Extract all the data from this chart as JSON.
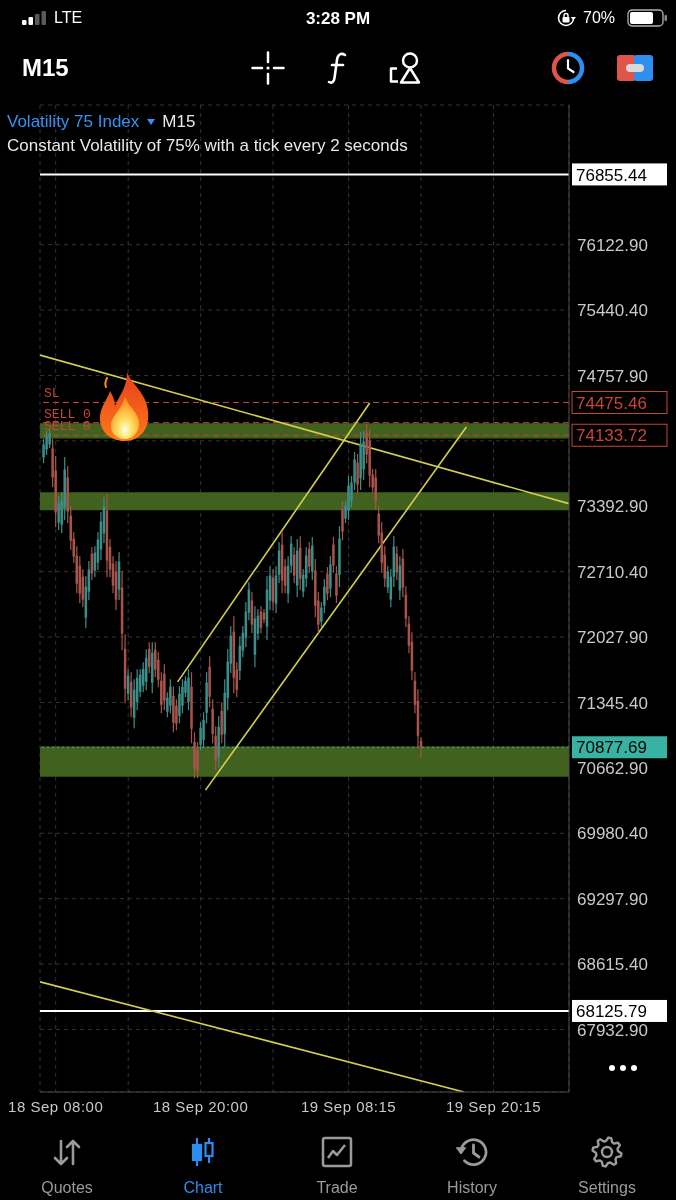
{
  "chart_data": {
    "type": "candlestick",
    "title": "Volatility 75 Index",
    "subtitle": "Constant Volatility of 75% with a tick every 2 seconds",
    "annotations": [
      "LTE",
      "3:28 PM",
      "70%",
      "M15",
      "M15",
      "Quotes",
      "Chart",
      "Trade",
      "History",
      "Settings",
      {
        "text": "SL",
        "y": 74475.46
      },
      {
        "text": "SELL 0",
        "y": 74265
      },
      {
        "text": "SELL 0",
        "y": 74133.72
      }
    ],
    "x": [
      "--09-18T07:00",
      "--09-18T07:15",
      "--09-18T07:30",
      "--09-18T07:45",
      "--09-18T08:00",
      "--09-18T08:15",
      "--09-18T08:30",
      "--09-18T08:45",
      "--09-18T09:00",
      "--09-18T09:15",
      "--09-18T09:30",
      "--09-18T09:45",
      "--09-18T10:00",
      "--09-18T10:15",
      "--09-18T10:30",
      "--09-18T10:45",
      "--09-18T11:00",
      "--09-18T11:15",
      "--09-18T11:30",
      "--09-18T11:45",
      "--09-18T12:00",
      "--09-18T12:15",
      "--09-18T12:30",
      "--09-18T12:45",
      "--09-18T13:00",
      "--09-18T13:15",
      "--09-18T13:30",
      "--09-18T13:45",
      "--09-18T14:00",
      "--09-18T14:15",
      "--09-18T14:30",
      "--09-18T14:45",
      "--09-18T15:00",
      "--09-18T15:15",
      "--09-18T15:30",
      "--09-18T15:45",
      "--09-18T16:00",
      "--09-18T16:15",
      "--09-18T16:30",
      "--09-18T16:45",
      "--09-18T17:00",
      "--09-18T17:15",
      "--09-18T17:30",
      "--09-18T17:45",
      "--09-18T18:00",
      "--09-18T18:15",
      "--09-18T18:30",
      "--09-18T18:45",
      "--09-18T19:00",
      "--09-18T19:15",
      "--09-18T19:30",
      "--09-18T19:45",
      "--09-18T20:00",
      "--09-18T20:15",
      "--09-18T20:30",
      "--09-18T20:45",
      "--09-18T21:00",
      "--09-18T21:15",
      "--09-18T21:30",
      "--09-18T21:45",
      "--09-18T22:00",
      "--09-18T22:15",
      "--09-18T22:30",
      "--09-18T22:45",
      "--09-18T23:00",
      "--09-18T23:15",
      "--09-18T23:30",
      "--09-18T23:45",
      "--09-19T00:00",
      "--09-19T00:15",
      "--09-19T00:30",
      "--09-19T00:45",
      "--09-19T01:00",
      "--09-19T01:15",
      "--09-19T01:30",
      "--09-19T01:45",
      "--09-19T02:00",
      "--09-19T02:15",
      "--09-19T02:30",
      "--09-19T02:45",
      "--09-19T03:00",
      "--09-19T03:15",
      "--09-19T03:30",
      "--09-19T03:45",
      "--09-19T04:00",
      "--09-19T04:15",
      "--09-19T04:30",
      "--09-19T04:45",
      "--09-19T05:00",
      "--09-19T05:15",
      "--09-19T05:30",
      "--09-19T05:45",
      "--09-19T06:00",
      "--09-19T06:15",
      "--09-19T06:30",
      "--09-19T06:45",
      "--09-19T07:00",
      "--09-19T07:15",
      "--09-19T07:30",
      "--09-19T07:45",
      "--09-19T08:00",
      "--09-19T08:15",
      "--09-19T08:30",
      "--09-19T08:45",
      "--09-19T09:00",
      "--09-19T09:15",
      "--09-19T09:30",
      "--09-19T09:45",
      "--09-19T10:00",
      "--09-19T10:15",
      "--09-19T10:30",
      "--09-19T10:45",
      "--09-19T11:00",
      "--09-19T11:15",
      "--09-19T11:30",
      "--09-19T11:45",
      "--09-19T12:00",
      "--09-19T12:15",
      "--09-19T12:30",
      "--09-19T12:45",
      "--09-19T13:00",
      "--09-19T13:15",
      "--09-19T13:30",
      "--09-19T13:45",
      "--09-19T14:00",
      "--09-19T14:15"
    ],
    "ohlc": [
      [
        73901,
        74089,
        73849,
        74037
      ],
      [
        73985,
        74173,
        73933,
        74120
      ],
      [
        74037,
        74194,
        74006,
        74152
      ],
      [
        73995,
        74089,
        73599,
        73693
      ],
      [
        73766,
        73912,
        73180,
        73327
      ],
      [
        73222,
        73494,
        73149,
        73421
      ],
      [
        73201,
        73536,
        73118,
        73452
      ],
      [
        73379,
        73901,
        73254,
        73776
      ],
      [
        73693,
        73807,
        73222,
        73338
      ],
      [
        73295,
        73390,
        72941,
        73034
      ],
      [
        73055,
        73118,
        72805,
        72867
      ],
      [
        72878,
        72971,
        72491,
        72585
      ],
      [
        72773,
        72867,
        72387,
        72481
      ],
      [
        72658,
        72732,
        72345,
        72418
      ],
      [
        72230,
        72658,
        72125,
        72554
      ],
      [
        72502,
        72815,
        72418,
        72732
      ],
      [
        72898,
        72961,
        72627,
        72690
      ],
      [
        72721,
        72971,
        72658,
        72909
      ],
      [
        72805,
        73118,
        72732,
        73045
      ],
      [
        72941,
        73327,
        72836,
        73233
      ],
      [
        73108,
        73484,
        73013,
        73390
      ],
      [
        73348,
        73515,
        72658,
        72826
      ],
      [
        72971,
        73045,
        72658,
        72732
      ],
      [
        72794,
        72867,
        72491,
        72564
      ],
      [
        72711,
        72815,
        72314,
        72418
      ],
      [
        72523,
        72909,
        72418,
        72815
      ],
      [
        72544,
        72711,
        71896,
        72063
      ],
      [
        71906,
        72052,
        71342,
        71488
      ],
      [
        71436,
        71687,
        71373,
        71624
      ],
      [
        71561,
        71656,
        71196,
        71290
      ],
      [
        71185,
        71582,
        71081,
        71478
      ],
      [
        71352,
        71687,
        71269,
        71603
      ],
      [
        71457,
        71687,
        71405,
        71635
      ],
      [
        71520,
        71760,
        71457,
        71697
      ],
      [
        71561,
        71896,
        71478,
        71812
      ],
      [
        71906,
        71969,
        71656,
        71718
      ],
      [
        71551,
        71969,
        71446,
        71864
      ],
      [
        71896,
        71969,
        71614,
        71687
      ],
      [
        71791,
        71864,
        71509,
        71582
      ],
      [
        71572,
        71656,
        71237,
        71321
      ],
      [
        71645,
        71739,
        71269,
        71363
      ],
      [
        71248,
        71446,
        71196,
        71394
      ],
      [
        71311,
        71582,
        71237,
        71509
      ],
      [
        71415,
        71509,
        71039,
        71133
      ],
      [
        71311,
        71373,
        71060,
        71122
      ],
      [
        71206,
        71509,
        71133,
        71436
      ],
      [
        71311,
        71582,
        71237,
        71509
      ],
      [
        71446,
        71614,
        71405,
        71572
      ],
      [
        71352,
        71687,
        71269,
        71603
      ],
      [
        71509,
        71656,
        70924,
        71070
      ],
      [
        70934,
        71029,
        70559,
        70653
      ],
      [
        70851,
        70924,
        70559,
        70632
      ],
      [
        70903,
        71133,
        70851,
        71081
      ],
      [
        70955,
        71237,
        70882,
        71164
      ],
      [
        71237,
        71656,
        71133,
        71551
      ],
      [
        71718,
        71822,
        71300,
        71405
      ],
      [
        71279,
        71373,
        70924,
        71018
      ],
      [
        70997,
        71091,
        70642,
        70736
      ],
      [
        70778,
        71196,
        70674,
        71091
      ],
      [
        71258,
        71342,
        70924,
        71008
      ],
      [
        71018,
        71582,
        70882,
        71446
      ],
      [
        71394,
        71896,
        71269,
        71770
      ],
      [
        71749,
        72136,
        71656,
        72042
      ],
      [
        72084,
        72240,
        71446,
        71603
      ],
      [
        71687,
        71760,
        71405,
        71478
      ],
      [
        71676,
        72031,
        71582,
        71937
      ],
      [
        71885,
        72136,
        71822,
        72073
      ],
      [
        72021,
        72387,
        71927,
        72293
      ],
      [
        72282,
        72595,
        72209,
        72523
      ],
      [
        72408,
        72491,
        72073,
        72157
      ],
      [
        71843,
        72345,
        71718,
        72220
      ],
      [
        72063,
        72314,
        72000,
        72251
      ],
      [
        72293,
        72345,
        72073,
        72125
      ],
      [
        72282,
        72314,
        72178,
        72209
      ],
      [
        72136,
        72658,
        72000,
        72523
      ],
      [
        72408,
        72763,
        72314,
        72669
      ],
      [
        72648,
        72732,
        72314,
        72397
      ],
      [
        72376,
        72763,
        72282,
        72669
      ],
      [
        72679,
        73013,
        72595,
        72930
      ],
      [
        72992,
        73118,
        72491,
        72617
      ],
      [
        72763,
        72836,
        72491,
        72564
      ],
      [
        72481,
        72867,
        72387,
        72773
      ],
      [
        72773,
        73076,
        72701,
        73003
      ],
      [
        72888,
        72961,
        72595,
        72669
      ],
      [
        72564,
        73045,
        72449,
        72930
      ],
      [
        72961,
        73076,
        72523,
        72637
      ],
      [
        72502,
        72732,
        72449,
        72679
      ],
      [
        72637,
        72961,
        72554,
        72878
      ],
      [
        72951,
        73013,
        72701,
        72763
      ],
      [
        72711,
        73066,
        72627,
        72982
      ],
      [
        72721,
        72836,
        72240,
        72355
      ],
      [
        72408,
        72491,
        72073,
        72157
      ],
      [
        72188,
        72387,
        72136,
        72335
      ],
      [
        72355,
        72627,
        72282,
        72554
      ],
      [
        72690,
        72752,
        72418,
        72481
      ],
      [
        72533,
        72867,
        72449,
        72784
      ],
      [
        72992,
        73066,
        72701,
        72773
      ],
      [
        72690,
        72763,
        72387,
        72460
      ],
      [
        72679,
        73180,
        72554,
        73055
      ],
      [
        73358,
        73442,
        73045,
        73128
      ],
      [
        73264,
        73442,
        73222,
        73400
      ],
      [
        73348,
        73703,
        73254,
        73609
      ],
      [
        73452,
        73703,
        73390,
        73640
      ],
      [
        73640,
        73954,
        73567,
        73881
      ],
      [
        73849,
        73933,
        73536,
        73619
      ],
      [
        73682,
        74162,
        73567,
        74047
      ],
      [
        73776,
        74173,
        73672,
        74068
      ],
      [
        74162,
        74246,
        73849,
        73933
      ],
      [
        74079,
        74194,
        73599,
        73713
      ],
      [
        73724,
        73776,
        73536,
        73588
      ],
      [
        73693,
        73776,
        73358,
        73442
      ],
      [
        73317,
        73390,
        73013,
        73087
      ],
      [
        73118,
        73222,
        72701,
        72805
      ],
      [
        72888,
        72971,
        72554,
        72637
      ],
      [
        72544,
        72763,
        72491,
        72711
      ],
      [
        72418,
        72732,
        72345,
        72658
      ],
      [
        72658,
        73076,
        72554,
        72971
      ],
      [
        72898,
        72971,
        72627,
        72701
      ],
      [
        72512,
        72867,
        72418,
        72773
      ],
      [
        72846,
        72941,
        72449,
        72544
      ],
      [
        72470,
        72554,
        72136,
        72220
      ],
      [
        72167,
        72240,
        71864,
        71937
      ],
      [
        71979,
        72073,
        71582,
        71676
      ],
      [
        71572,
        71656,
        71237,
        71321
      ],
      [
        71363,
        71478,
        70882,
        70997
      ],
      [
        70945,
        70976,
        70768,
        70877.69
      ]
    ],
    "colors": [
      "#3a8f8b",
      "#3a8f8b",
      "#3a8f8b",
      "#a9534b",
      "#a9534b",
      "#3a8f8b",
      "#3a8f8b",
      "#3a8f8b",
      "#a9534b",
      "#a9534b",
      "#a9534b",
      "#a9534b",
      "#a9534b",
      "#a9534b",
      "#3a8f8b",
      "#3a8f8b",
      "#a9534b",
      "#3a8f8b",
      "#3a8f8b",
      "#3a8f8b",
      "#3a8f8b",
      "#a9534b",
      "#a9534b",
      "#a9534b",
      "#a9534b",
      "#3a8f8b",
      "#a9534b",
      "#a9534b",
      "#3a8f8b",
      "#a9534b",
      "#3a8f8b",
      "#3a8f8b",
      "#3a8f8b",
      "#3a8f8b",
      "#3a8f8b",
      "#a9534b",
      "#3a8f8b",
      "#a9534b",
      "#a9534b",
      "#a9534b",
      "#a9534b",
      "#3a8f8b",
      "#3a8f8b",
      "#a9534b",
      "#a9534b",
      "#3a8f8b",
      "#3a8f8b",
      "#3a8f8b",
      "#3a8f8b",
      "#a9534b",
      "#a9534b",
      "#a9534b",
      "#3a8f8b",
      "#3a8f8b",
      "#3a8f8b",
      "#a9534b",
      "#a9534b",
      "#a9534b",
      "#3a8f8b",
      "#a9534b",
      "#3a8f8b",
      "#3a8f8b",
      "#3a8f8b",
      "#a9534b",
      "#a9534b",
      "#3a8f8b",
      "#3a8f8b",
      "#3a8f8b",
      "#3a8f8b",
      "#a9534b",
      "#3a8f8b",
      "#3a8f8b",
      "#a9534b",
      "#a9534b",
      "#3a8f8b",
      "#3a8f8b",
      "#a9534b",
      "#3a8f8b",
      "#3a8f8b",
      "#a9534b",
      "#a9534b",
      "#3a8f8b",
      "#3a8f8b",
      "#a9534b",
      "#3a8f8b",
      "#a9534b",
      "#3a8f8b",
      "#3a8f8b",
      "#a9534b",
      "#3a8f8b",
      "#a9534b",
      "#a9534b",
      "#3a8f8b",
      "#3a8f8b",
      "#a9534b",
      "#3a8f8b",
      "#a9534b",
      "#a9534b",
      "#3a8f8b",
      "#a9534b",
      "#3a8f8b",
      "#3a8f8b",
      "#3a8f8b",
      "#3a8f8b",
      "#a9534b",
      "#3a8f8b",
      "#3a8f8b",
      "#a9534b",
      "#a9534b",
      "#a9534b",
      "#a9534b",
      "#a9534b",
      "#a9534b",
      "#a9534b",
      "#3a8f8b",
      "#3a8f8b",
      "#3a8f8b",
      "#a9534b",
      "#3a8f8b",
      "#a9534b",
      "#a9534b",
      "#a9534b",
      "#a9534b",
      "#a9534b",
      "#a9534b",
      "#a9534b"
    ],
    "series": [
      {
        "type": "line",
        "color": "#d4cf4f",
        "x": [
          "--09-18T06:42",
          "--09-20T02:30"
        ],
        "values": [
          74970,
          73420
        ]
      },
      {
        "type": "line",
        "color": "#d4cf4f",
        "x": [
          "--09-18T06:42",
          "--09-19T17:48"
        ],
        "values": [
          68430,
          67280
        ]
      },
      {
        "type": "line",
        "color": "#d4cf4f",
        "x": [
          "--09-18T18:06",
          "--09-19T10:00"
        ],
        "values": [
          71560,
          74470
        ]
      },
      {
        "type": "line",
        "color": "#d4cf4f",
        "x": [
          "--09-18T20:24",
          "--09-19T18:00"
        ],
        "values": [
          70430,
          74220
        ]
      }
    ],
    "xlim": [
      "--09-18T06:42",
      "--09-20T02:30"
    ],
    "xticks": [
      {
        "value": "--09-18T08:00",
        "label": "18 Sep 08:00"
      },
      {
        "value": "--09-18T14:00",
        "label": null
      },
      {
        "value": "--09-18T20:00",
        "label": "18 Sep 20:00"
      },
      {
        "value": "--09-19T02:00",
        "label": null
      },
      {
        "value": "--09-19T08:15",
        "label": "19 Sep 08:15"
      },
      {
        "value": "--09-19T14:15",
        "label": null
      },
      {
        "value": "--09-19T20:15",
        "label": "19 Sep 20:15"
      }
    ],
    "ylim": [
      67280,
      77580
    ],
    "yticks": [
      {
        "value": 76122.9,
        "label": "76122.90"
      },
      {
        "value": 75440.4,
        "label": "75440.40"
      },
      {
        "value": 74757.9,
        "label": "74757.90"
      },
      {
        "value": 74075.4,
        "label": null
      },
      {
        "value": 73392.9,
        "label": "73392.90"
      },
      {
        "value": 72710.4,
        "label": "72710.40"
      },
      {
        "value": 72027.9,
        "label": "72027.90"
      },
      {
        "value": 71345.4,
        "label": "71345.40"
      },
      {
        "value": 70662.9,
        "label": "70662.90"
      },
      {
        "value": 69980.4,
        "label": "69980.40"
      },
      {
        "value": 69297.9,
        "label": "69297.90"
      },
      {
        "value": 68615.4,
        "label": "68615.40"
      },
      {
        "value": 67932.9,
        "label": "67932.90"
      }
    ],
    "grid": true,
    "ref_lines": [
      {
        "axis": "y",
        "value": 76855.44,
        "label": "76855.44",
        "color": "#ffffff",
        "line_style": "solid"
      },
      {
        "axis": "y",
        "value": 74475.46,
        "label": "74475.46",
        "color": "#c8453b",
        "line_style": "dashed"
      },
      {
        "axis": "y",
        "value": 74265,
        "color": "#c8453b",
        "line_style": "dashed"
      },
      {
        "axis": "y",
        "value": 74133.72,
        "label": "74133.72",
        "color": "#c8453b",
        "line_style": "dashed"
      },
      {
        "axis": "y",
        "value": 70877.69,
        "label": "70877.69",
        "color": "#38b2a2",
        "line_style": "dotted"
      },
      {
        "axis": "y",
        "value": 68125.79,
        "label": "68125.79",
        "color": "#ffffff",
        "line_style": "solid"
      }
    ],
    "bands": [
      {
        "axis": "y",
        "from": 74100,
        "to": 74260,
        "color": "#41621f"
      },
      {
        "axis": "y",
        "from": 73350,
        "to": 73540,
        "color": "#41621f"
      },
      {
        "axis": "y",
        "from": 70570,
        "to": 70885,
        "color": "#41621f"
      }
    ]
  }
}
